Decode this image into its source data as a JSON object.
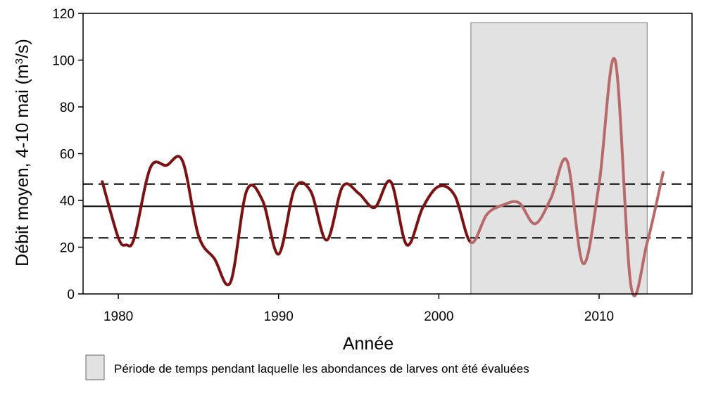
{
  "chart_data": {
    "type": "line",
    "title": "",
    "xlabel": "Année",
    "ylabel_main": "Débit moyen,  4-10 mai (m",
    "ylabel_sup": "3",
    "ylabel_tail": "/s)",
    "xlim": [
      1977.8,
      2015.8
    ],
    "ylim": [
      0,
      120
    ],
    "x_ticks": [
      1980,
      1990,
      2000,
      2010
    ],
    "y_ticks": [
      0,
      20,
      40,
      60,
      80,
      100,
      120
    ],
    "grid": false,
    "series": [
      {
        "color_before": "#7b1111",
        "color_within": "#b86a6a",
        "x": [
          1979,
          1980,
          1980.5,
          1981,
          1982,
          1983,
          1984,
          1985,
          1986,
          1987,
          1988,
          1989,
          1990,
          1991,
          1992,
          1993,
          1994,
          1995,
          1996,
          1997,
          1998,
          1999,
          2000,
          2001,
          2002,
          2003,
          2004,
          2005,
          2006,
          2007,
          2008,
          2009,
          2010,
          2011,
          2012,
          2013,
          2014
        ],
        "y": [
          48,
          24,
          21,
          24,
          54,
          55,
          57,
          25,
          15,
          5,
          44,
          40,
          17,
          45,
          44,
          23,
          46,
          43,
          37,
          48,
          21,
          37,
          46,
          42,
          22,
          34,
          38,
          39,
          30,
          41,
          57,
          13,
          47,
          100,
          3,
          22,
          52
        ]
      }
    ],
    "reference_lines": [
      {
        "y": 37.5,
        "style": "solid"
      },
      {
        "y": 47,
        "style": "dashed"
      },
      {
        "y": 24,
        "style": "dashed"
      }
    ],
    "shaded_period": {
      "x_start": 2002,
      "x_end": 2013,
      "y_top": 116,
      "color": "#e2e2e2"
    },
    "legend": {
      "text": "Période de temps pendant laquelle les abondances de larves ont été évaluées",
      "swatch_color": "#e2e2e2",
      "placement": "bottom"
    }
  }
}
